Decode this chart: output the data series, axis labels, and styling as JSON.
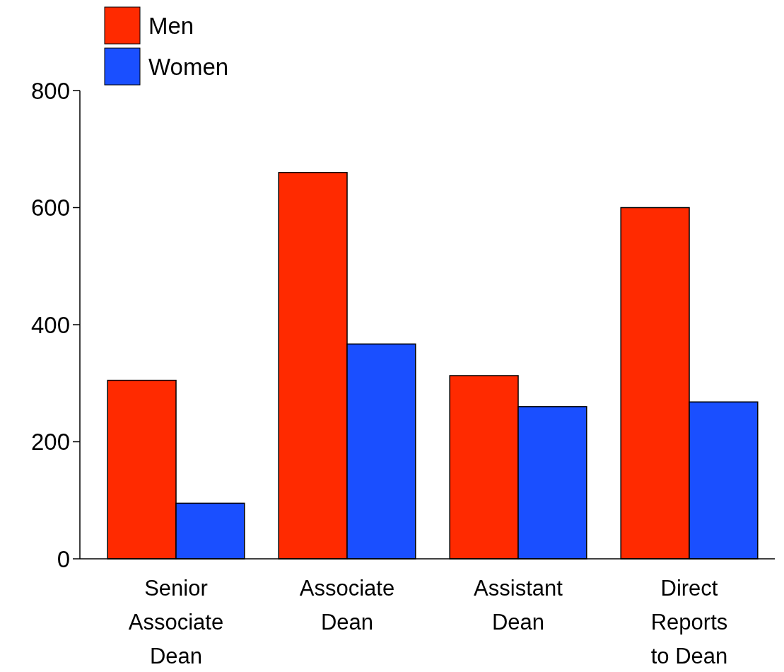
{
  "chart_data": {
    "type": "bar",
    "categories": [
      "Senior Associate Dean",
      "Associate Dean",
      "Assistant Dean",
      "Direct Reports to Dean"
    ],
    "series": [
      {
        "name": "Men",
        "color": "#ff2a00",
        "values": [
          305,
          660,
          313,
          600
        ]
      },
      {
        "name": "Women",
        "color": "#1a4fff",
        "values": [
          95,
          367,
          260,
          268
        ]
      }
    ],
    "ylim": [
      0,
      800
    ],
    "yticks": [
      0,
      200,
      400,
      600,
      800
    ],
    "grid": false,
    "legend": "top left"
  }
}
